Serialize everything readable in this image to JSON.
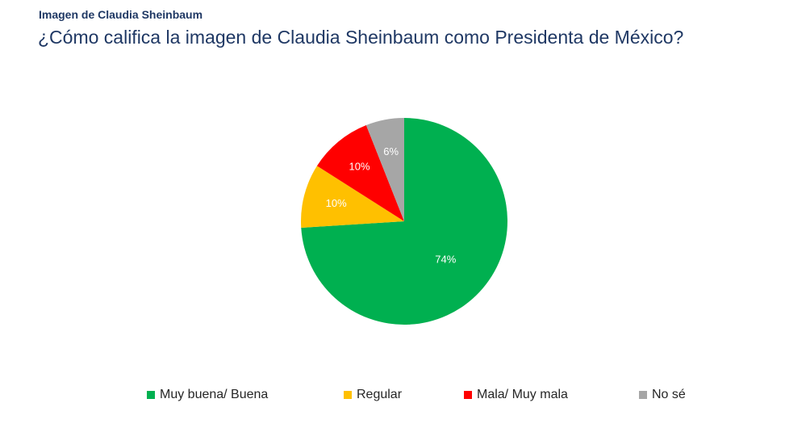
{
  "header": {
    "kicker": "Imagen de Claudia Sheinbaum",
    "question": "¿Cómo califica la imagen de Claudia Sheinbaum como Presidenta de México?"
  },
  "chart_data": {
    "type": "pie",
    "title": "",
    "legend_position": "bottom",
    "slices": [
      {
        "label": "Muy buena/ Buena",
        "value": 74,
        "value_label": "74%",
        "color": "#00b050"
      },
      {
        "label": "Regular",
        "value": 10,
        "value_label": "10%",
        "color": "#ffc000"
      },
      {
        "label": "Mala/ Muy mala",
        "value": 10,
        "value_label": "10%",
        "color": "#ff0000"
      },
      {
        "label": "No sé",
        "value": 6,
        "value_label": "6%",
        "color": "#a6a6a6"
      }
    ]
  }
}
